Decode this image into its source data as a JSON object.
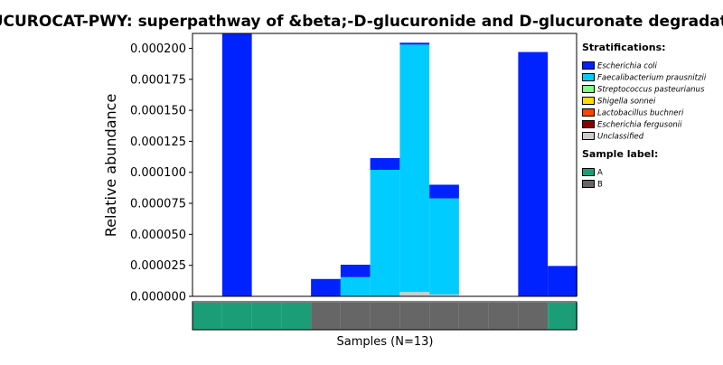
{
  "chart_data": {
    "type": "bar",
    "stacked": true,
    "title": "GLUCUROCAT-PWY: superpathway of &beta;-D-glucuronide and D-glucuronate degradation",
    "xlabel": "Samples (N=13)",
    "ylabel": "Relative abundance",
    "ylim": [
      0,
      0.000212
    ],
    "yticks": [
      "0.000000",
      "0.000025",
      "0.000050",
      "0.000075",
      "0.000100",
      "0.000125",
      "0.000150",
      "0.000175",
      "0.000200"
    ],
    "ytick_values": [
      0,
      2.5e-05,
      5e-05,
      7.5e-05,
      0.0001,
      0.000125,
      0.00015,
      0.000175,
      0.0002
    ],
    "sample_count": 13,
    "series": [
      {
        "name": "Unclassified",
        "color": "#cccccc",
        "values": [
          0,
          0,
          0,
          0,
          0,
          0,
          0,
          3.5e-06,
          1.5e-06,
          0,
          0,
          0,
          0
        ]
      },
      {
        "name": "Faecalibacterium prausnitzii",
        "color": "#00ccff",
        "values": [
          0,
          0,
          0,
          0,
          0,
          1.55e-05,
          0.000102,
          0.0001995,
          7.75e-05,
          0,
          0,
          0,
          0
        ]
      },
      {
        "name": "Escherichia coli",
        "color": "#0022ff",
        "values": [
          0,
          0.000212,
          0,
          0,
          1.4e-05,
          1e-05,
          9.5e-06,
          1.5e-06,
          1.1e-05,
          0,
          0,
          0.000197,
          2.45e-05
        ]
      }
    ],
    "sample_labels": [
      "A",
      "A",
      "A",
      "A",
      "B",
      "B",
      "B",
      "B",
      "B",
      "B",
      "B",
      "B",
      "A"
    ],
    "legend_position": "right"
  },
  "legend": {
    "strat_title": "Stratifications:",
    "strat_items": [
      {
        "label": "Escherichia coli",
        "color": "#0022ff"
      },
      {
        "label": "Faecalibacterium prausnitzii",
        "color": "#00ccff"
      },
      {
        "label": "Streptococcus pasteurianus",
        "color": "#80ff80"
      },
      {
        "label": "Shigella sonnei",
        "color": "#ffdd00"
      },
      {
        "label": "Lactobacillus buchneri",
        "color": "#ff4400"
      },
      {
        "label": "Escherichia fergusonii",
        "color": "#880000"
      },
      {
        "label": "Unclassified",
        "color": "#cccccc"
      }
    ],
    "sample_title": "Sample label:",
    "sample_items": [
      {
        "label": "A",
        "color": "#1b9e77"
      },
      {
        "label": "B",
        "color": "#666666"
      }
    ]
  }
}
